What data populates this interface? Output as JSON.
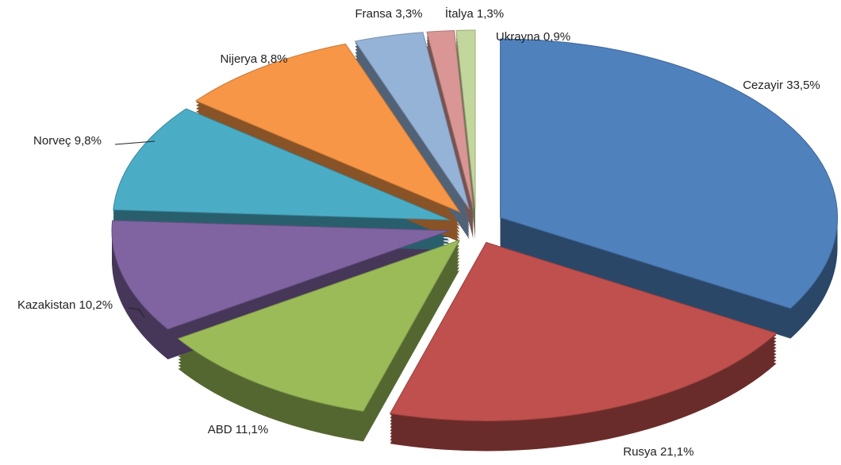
{
  "chart_data": {
    "type": "pie",
    "categories": [
      "Cezayir",
      "Rusya",
      "ABD",
      "Kazakistan",
      "Norveç",
      "Nijerya",
      "Fransa",
      "İtalya",
      "Ukrayna"
    ],
    "values": [
      33.5,
      21.1,
      11.1,
      10.2,
      9.8,
      8.8,
      3.3,
      1.3,
      0.9
    ],
    "value_labels": [
      "33,5%",
      "21,1%",
      "11,1%",
      "10,2%",
      "9,8%",
      "8,8%",
      "3,3%",
      "1,3%",
      "0,9%"
    ],
    "colors": [
      "#4f81bd",
      "#c0504d",
      "#9bbb59",
      "#8064a2",
      "#4bacc6",
      "#f79646",
      "#95b3d7",
      "#d99694",
      "#c3d69b"
    ]
  }
}
